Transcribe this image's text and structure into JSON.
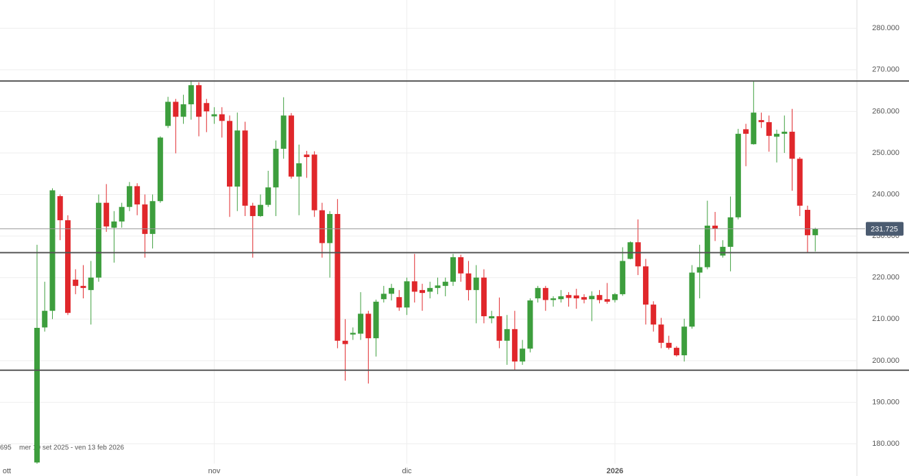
{
  "chart_data": {
    "type": "candlestick",
    "categories": [
      "ott",
      null,
      null,
      null,
      null,
      null,
      null,
      null,
      null,
      null,
      null,
      null,
      null,
      null,
      null,
      null,
      null,
      null,
      null,
      null,
      null,
      null,
      null,
      "nov",
      null,
      null,
      null,
      null,
      null,
      null,
      null,
      null,
      null,
      null,
      null,
      null,
      null,
      null,
      null,
      null,
      null,
      null,
      null,
      null,
      null,
      null,
      null,
      null,
      "dic",
      null,
      null,
      null,
      null,
      null,
      null,
      null,
      null,
      null,
      null,
      null,
      null,
      null,
      null,
      null,
      null,
      null,
      null,
      null,
      null,
      null,
      null,
      null,
      null,
      null,
      null,
      "2026",
      null,
      null,
      null,
      null,
      null,
      null,
      null,
      null,
      null,
      null,
      null,
      null,
      null,
      null,
      null,
      null,
      null,
      null,
      null,
      null,
      null,
      null,
      null,
      null,
      null,
      null
    ],
    "ohlc": [
      [
        175.5,
        227.9,
        175.2,
        207.9
      ],
      [
        208,
        219,
        207,
        212
      ],
      [
        212,
        241.5,
        210,
        241
      ],
      [
        239.6,
        240,
        229,
        233.8
      ],
      [
        233.8,
        235,
        211,
        211.5
      ],
      [
        219.5,
        222,
        216,
        218
      ],
      [
        218,
        223,
        215,
        217.5
      ],
      [
        217,
        224,
        208.7,
        220
      ],
      [
        220,
        240,
        219,
        238
      ],
      [
        238,
        242.5,
        231,
        232.3
      ],
      [
        232,
        236,
        223.6,
        233.5
      ],
      [
        233.5,
        238,
        232,
        237
      ],
      [
        237,
        243,
        236,
        242
      ],
      [
        242,
        242.7,
        235,
        237.6
      ],
      [
        237.6,
        240,
        224.8,
        230.5
      ],
      [
        230.5,
        240,
        227,
        238.4
      ],
      [
        238.4,
        254,
        238,
        253.7
      ],
      [
        256.5,
        263.5,
        256,
        262.3
      ],
      [
        262.3,
        263,
        249.9,
        258.7
      ],
      [
        258.7,
        264,
        257,
        261.7
      ],
      [
        261.7,
        267.5,
        258,
        266.3
      ],
      [
        266.3,
        267,
        254,
        258.7
      ],
      [
        262,
        263,
        255,
        260
      ],
      [
        258.8,
        261,
        257,
        259.3
      ],
      [
        259.3,
        261,
        253.7,
        257.7
      ],
      [
        257.7,
        259,
        234.6,
        241.9
      ],
      [
        241.9,
        259.7,
        236,
        255.4
      ],
      [
        255.4,
        257.5,
        234.8,
        237.3
      ],
      [
        237.3,
        238,
        224.8,
        234.8
      ],
      [
        234.8,
        240,
        234.6,
        237.5
      ],
      [
        237.5,
        245.7,
        237,
        241.7
      ],
      [
        241.7,
        253,
        234.8,
        251
      ],
      [
        251,
        263.4,
        248.6,
        259
      ],
      [
        259,
        259.6,
        243.8,
        244.3
      ],
      [
        244.3,
        252,
        235,
        247.5
      ],
      [
        249.6,
        250.5,
        244,
        249
      ],
      [
        249.6,
        250.4,
        234.6,
        236.2
      ],
      [
        236.2,
        238,
        224.8,
        228.3
      ],
      [
        228.3,
        236,
        220,
        235.3
      ],
      [
        235.3,
        238.9,
        203,
        204.8
      ],
      [
        204.8,
        210,
        195.2,
        204
      ],
      [
        206.3,
        208,
        205,
        206.7
      ],
      [
        206.5,
        216.5,
        205,
        211.3
      ],
      [
        211.3,
        212,
        194.5,
        205.4
      ],
      [
        205.4,
        214.7,
        201,
        214.2
      ],
      [
        214.8,
        218,
        214,
        216.1
      ],
      [
        216.1,
        218.5,
        214.5,
        217.5
      ],
      [
        215.3,
        217,
        212,
        212.8
      ],
      [
        212.8,
        220,
        211,
        219.1
      ],
      [
        219.1,
        225.7,
        214,
        216.6
      ],
      [
        217,
        218.5,
        212,
        216.3
      ],
      [
        216.6,
        219,
        215,
        217.5
      ],
      [
        217.5,
        220,
        216,
        218.1
      ],
      [
        218,
        220,
        215.5,
        219
      ],
      [
        219,
        225.7,
        218,
        224.9
      ],
      [
        224.9,
        225.5,
        219,
        221
      ],
      [
        221,
        224,
        214.5,
        217
      ],
      [
        217,
        223,
        209,
        220
      ],
      [
        220,
        222,
        209,
        210.7
      ],
      [
        210.2,
        212,
        209,
        210.7
      ],
      [
        210.7,
        215.2,
        203,
        204.8
      ],
      [
        204.8,
        211,
        199,
        207.6
      ],
      [
        207.6,
        212,
        197.7,
        199.8
      ],
      [
        199.8,
        205,
        199,
        202.9
      ],
      [
        202.9,
        215,
        202,
        214.5
      ],
      [
        215,
        218,
        214,
        217.5
      ],
      [
        217.5,
        218,
        212,
        214.6
      ],
      [
        214.6,
        215.5,
        213,
        215
      ],
      [
        214.8,
        217,
        214,
        215.5
      ],
      [
        215.8,
        216.5,
        213,
        215.1
      ],
      [
        215.7,
        217.3,
        212.5,
        215
      ],
      [
        215.3,
        216,
        213.8,
        214.7
      ],
      [
        214.8,
        216.7,
        209.5,
        215.6
      ],
      [
        215.8,
        217,
        213.8,
        214.6
      ],
      [
        214.8,
        218.7,
        213.7,
        214.2
      ],
      [
        214.6,
        216.3,
        214,
        216
      ],
      [
        216,
        227.3,
        215.6,
        224
      ],
      [
        224.5,
        228.7,
        224.4,
        228.5
      ],
      [
        228.5,
        234,
        220.6,
        222.7
      ],
      [
        222.7,
        224.5,
        208.7,
        213.5
      ],
      [
        213.5,
        214.3,
        207,
        208.7
      ],
      [
        208.7,
        210.3,
        203,
        204.3
      ],
      [
        204.3,
        206,
        202.7,
        203.1
      ],
      [
        203.1,
        203.5,
        201,
        201.3
      ],
      [
        201.3,
        210.1,
        199.8,
        208.2
      ],
      [
        208.2,
        223,
        207.7,
        221.2
      ],
      [
        221.2,
        227.9,
        215,
        222.5
      ],
      [
        222.5,
        238.5,
        222,
        232.5
      ],
      [
        232.5,
        235.8,
        228.8,
        231.8
      ],
      [
        225.3,
        229,
        224.8,
        227.4
      ],
      [
        227.4,
        239.5,
        221.5,
        234.5
      ],
      [
        234.5,
        255.8,
        234,
        254.6
      ],
      [
        255.7,
        257,
        246.8,
        254.6
      ],
      [
        252.1,
        267.3,
        252,
        259.7
      ],
      [
        257.9,
        259.7,
        256,
        257.4
      ],
      [
        257.4,
        259,
        250.3,
        254.1
      ],
      [
        253.9,
        255.6,
        247.7,
        254.6
      ],
      [
        254.6,
        259,
        250,
        255.1
      ],
      [
        255.1,
        260.6,
        240.9,
        248.6
      ],
      [
        248.6,
        249,
        234.8,
        237.3
      ],
      [
        236.3,
        237.3,
        226.1,
        230.2
      ],
      [
        230.2,
        232,
        226.3,
        231.725
      ]
    ],
    "up_color": "#3d9e3d",
    "down_color": "#e0272b",
    "ylim": [
      172.25,
      286.8
    ],
    "yticks": [
      {
        "value": 180,
        "label": "180.000"
      },
      {
        "value": 190,
        "label": "190.000"
      },
      {
        "value": 200,
        "label": "200.000"
      },
      {
        "value": 210,
        "label": "210.000"
      },
      {
        "value": 220,
        "label": "220.000"
      },
      {
        "value": 230,
        "label": "230.000"
      },
      {
        "value": 240,
        "label": "240.000"
      },
      {
        "value": 250,
        "label": "250.000"
      },
      {
        "value": 260,
        "label": "260.000"
      },
      {
        "value": 270,
        "label": "270.000"
      },
      {
        "value": 280,
        "label": "280.000"
      }
    ],
    "hlines": [
      267.3,
      226,
      197.7
    ],
    "last_value": {
      "value": 231.725,
      "label": "231.725"
    },
    "grid": true,
    "range_label": "mer 10 set 2025 - ven 13 feb 2026",
    "cut_label": "695"
  }
}
